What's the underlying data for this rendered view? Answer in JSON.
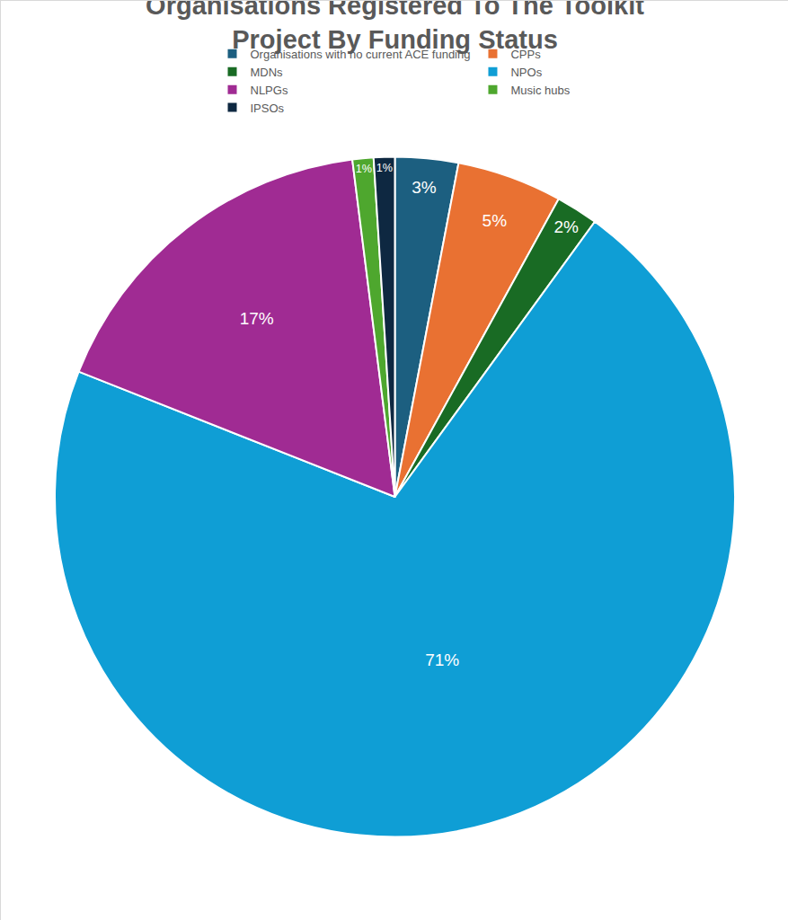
{
  "chart_data": {
    "type": "pie",
    "title": "Organisations Registered To The Toolkit\nProject By Funding Status",
    "categories": [
      "Organisations with no current ACE funding",
      "CPPs",
      "MDNs",
      "NPOs",
      "NLPGs",
      "Music hubs",
      "IPSOs"
    ],
    "values": [
      3,
      5,
      2,
      71,
      17,
      1,
      1
    ],
    "value_labels": [
      "3%",
      "5%",
      "2%",
      "71%",
      "17%",
      "1%",
      "1%"
    ],
    "colors": [
      "#1c5f80",
      "#e97132",
      "#196b24",
      "#0f9ed5",
      "#a02b93",
      "#4ea72e",
      "#0e2841"
    ],
    "data_labels": true,
    "legend": "top"
  }
}
